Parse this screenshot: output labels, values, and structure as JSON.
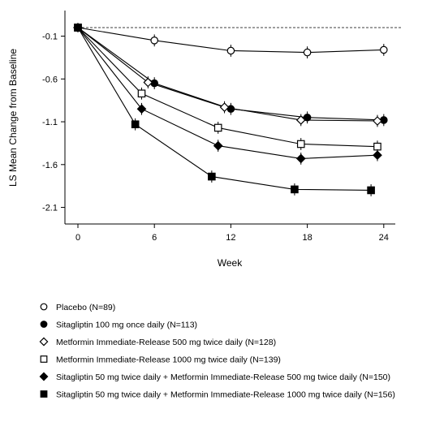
{
  "chart_data": {
    "type": "line",
    "xlabel": "Week",
    "ylabel": "LS Mean Change from Baseline",
    "x_ticks": [
      0,
      6,
      12,
      18,
      24
    ],
    "y_ticks": [
      -0.1,
      -0.6,
      -1.1,
      -1.6,
      -2.1
    ],
    "y_tick_labels": [
      "-0.1",
      "-0.6",
      "-1.1",
      "-1.6",
      "-2.1"
    ],
    "x_tick_labels": [
      "0",
      "6",
      "12",
      "18",
      "24"
    ],
    "xlim": [
      -2,
      25
    ],
    "ylim": [
      -2.3,
      0.1
    ],
    "reference_line": 0,
    "series": [
      {
        "name": "Placebo (N=89)",
        "marker": "circle-open",
        "points": [
          [
            0,
            0
          ],
          [
            6,
            -0.15
          ],
          [
            12,
            -0.27
          ],
          [
            18,
            -0.29
          ],
          [
            24,
            -0.26
          ]
        ]
      },
      {
        "name": "Sitagliptin 100 mg once daily (N=113)",
        "marker": "circle-filled",
        "points": [
          [
            0,
            0
          ],
          [
            6,
            -0.65
          ],
          [
            12,
            -0.95
          ],
          [
            18,
            -1.05
          ],
          [
            24,
            -1.08
          ]
        ]
      },
      {
        "name": "Metformin Immediate-Release 500 mg twice daily (N=128)",
        "marker": "diamond-open",
        "points": [
          [
            0,
            0
          ],
          [
            5.5,
            -0.64
          ],
          [
            11.5,
            -0.93
          ],
          [
            17.5,
            -1.08
          ],
          [
            23.5,
            -1.09
          ]
        ]
      },
      {
        "name": "Metformin Immediate-Release 1000 mg twice daily (N=139)",
        "marker": "square-open",
        "points": [
          [
            0,
            0
          ],
          [
            5,
            -0.77
          ],
          [
            11,
            -1.17
          ],
          [
            17.5,
            -1.36
          ],
          [
            23.5,
            -1.39
          ]
        ]
      },
      {
        "name": "Sitagliptin 50 mg twice daily + Metformin Immediate-Release 500 mg twice daily (N=150)",
        "marker": "diamond-filled",
        "points": [
          [
            0,
            0
          ],
          [
            5,
            -0.95
          ],
          [
            11,
            -1.38
          ],
          [
            17.5,
            -1.53
          ],
          [
            23.5,
            -1.49
          ]
        ]
      },
      {
        "name": "Sitagliptin 50 mg twice daily + Metformin Immediate-Release 1000 mg twice daily (N=156)",
        "marker": "square-filled",
        "points": [
          [
            0,
            0
          ],
          [
            4.5,
            -1.13
          ],
          [
            10.5,
            -1.74
          ],
          [
            17,
            -1.89
          ],
          [
            23,
            -1.9
          ]
        ]
      }
    ],
    "error_bar_halfwidth": 0.07,
    "legend_position": "bottom"
  }
}
